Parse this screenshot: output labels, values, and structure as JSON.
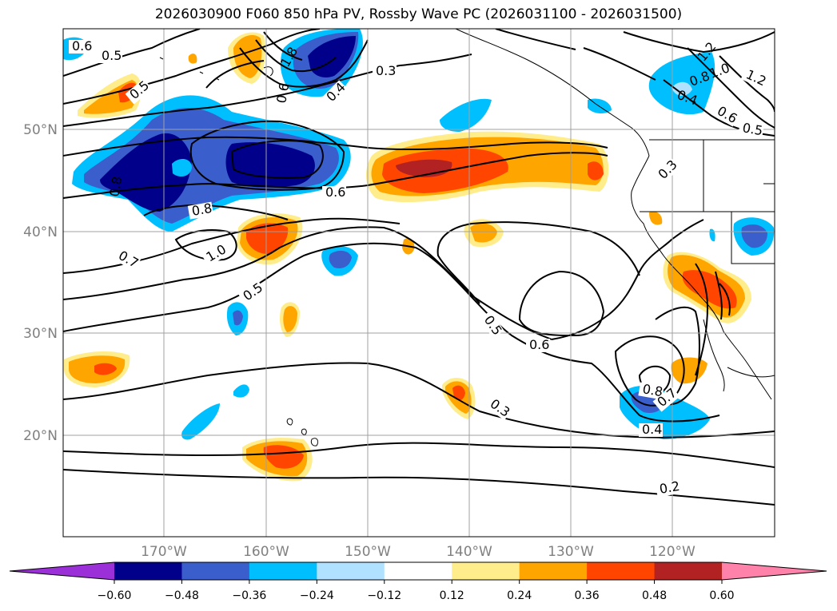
{
  "title": "2026030900 F060 850 hPa PV, Rossby Wave PC (2026031100 - 2026031500)",
  "map": {
    "lat_labels": [
      "50°N",
      "40°N",
      "30°N",
      "20°N"
    ],
    "lon_labels": [
      "170°W",
      "160°W",
      "150°W",
      "140°W",
      "130°W",
      "120°W"
    ],
    "contour_labels": [
      "0.6",
      "0.5",
      "0.5",
      "1.8",
      "0.6",
      "0.4",
      "0.3",
      "1.2",
      "0.8",
      "1.0",
      "1.2",
      "0.4",
      "0.6",
      "0.5",
      "0.8",
      "0.6",
      "0.8",
      "1.0",
      "0.7",
      "0.5",
      "0.3",
      "0.5",
      "0.6",
      "0.8",
      "0.7",
      "0.4",
      "0.3",
      "0.2"
    ]
  },
  "colorbar": {
    "ticks": [
      "−0.60",
      "−0.48",
      "−0.36",
      "−0.24",
      "−0.12",
      "0.12",
      "0.24",
      "0.36",
      "0.48",
      "0.60"
    ],
    "colors": [
      "#9b30d9",
      "#00008b",
      "#3a5fcd",
      "#00bfff",
      "#b0e2ff",
      "#ffffff",
      "#ffec8b",
      "#ffa500",
      "#ff4500",
      "#b22222",
      "#ff82ab"
    ]
  }
}
